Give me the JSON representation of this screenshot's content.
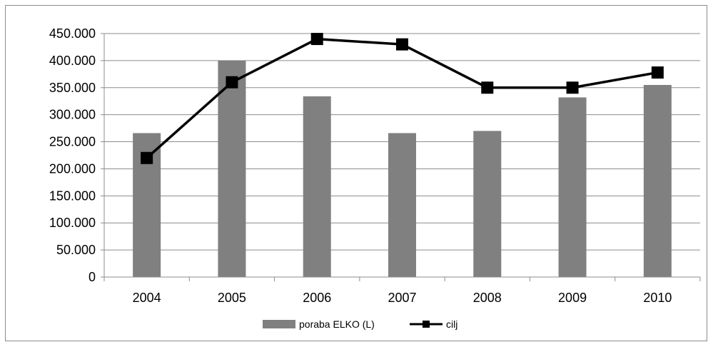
{
  "chart_data": {
    "type": "bar",
    "categories": [
      "2004",
      "2005",
      "2006",
      "2007",
      "2008",
      "2009",
      "2010"
    ],
    "series": [
      {
        "name": "poraba ELKO (L)",
        "type": "bar",
        "color": "#808080",
        "values": [
          266000,
          400000,
          334000,
          266000,
          270000,
          332000,
          355000
        ]
      },
      {
        "name": "cilj",
        "type": "line",
        "color": "#000000",
        "marker": "square",
        "values": [
          220000,
          360000,
          440000,
          430000,
          350000,
          350000,
          378000
        ]
      }
    ],
    "y_ticks": [
      "0",
      "50.000",
      "100.000",
      "150.000",
      "200.000",
      "250.000",
      "300.000",
      "350.000",
      "400.000",
      "450.000"
    ],
    "ylim": [
      0,
      450000
    ],
    "grid": true,
    "legend_position": "bottom"
  }
}
